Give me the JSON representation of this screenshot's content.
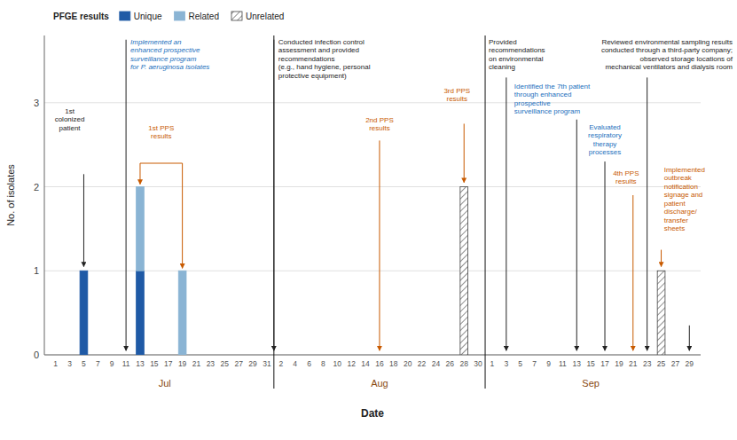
{
  "chart_data": {
    "type": "bar",
    "stacked": true,
    "xlabel": "Date",
    "ylabel": "No. of isolates",
    "categories": [
      "1",
      "3",
      "5",
      "7",
      "9",
      "11",
      "13",
      "15",
      "17",
      "19",
      "21",
      "23",
      "25",
      "27",
      "29",
      "31",
      "2",
      "4",
      "6",
      "8",
      "10",
      "12",
      "14",
      "16",
      "18",
      "20",
      "22",
      "24",
      "26",
      "28",
      "30",
      "1",
      "3",
      "5",
      "7",
      "9",
      "11",
      "13",
      "15",
      "17",
      "19",
      "21",
      "23",
      "25",
      "27",
      "29"
    ],
    "series": [
      {
        "name": "Unique",
        "color": "#1f5aa6",
        "values": [
          0,
          0,
          1,
          0,
          0,
          0,
          1,
          0,
          0,
          0,
          0,
          0,
          0,
          0,
          0,
          0,
          0,
          0,
          0,
          0,
          0,
          0,
          0,
          0,
          0,
          0,
          0,
          0,
          0,
          0,
          0,
          0,
          0,
          0,
          0,
          0,
          0,
          0,
          0,
          0,
          0,
          0,
          0,
          0,
          0,
          0
        ]
      },
      {
        "name": "Related",
        "color": "#8ab4d4",
        "values": [
          0,
          0,
          0,
          0,
          0,
          0,
          1,
          0,
          0,
          1,
          0,
          0,
          0,
          0,
          0,
          0,
          0,
          0,
          0,
          0,
          0,
          0,
          0,
          0,
          0,
          0,
          0,
          0,
          0,
          0,
          0,
          0,
          0,
          0,
          0,
          0,
          0,
          0,
          0,
          0,
          0,
          0,
          0,
          0,
          0,
          0
        ]
      },
      {
        "name": "Unrelated",
        "color": "#ffffff",
        "values": [
          0,
          0,
          0,
          0,
          0,
          0,
          0,
          0,
          0,
          0,
          0,
          0,
          0,
          0,
          0,
          0,
          0,
          0,
          0,
          0,
          0,
          0,
          0,
          0,
          0,
          0,
          0,
          0,
          0,
          2,
          0,
          0,
          0,
          0,
          0,
          0,
          0,
          0,
          0,
          0,
          0,
          0,
          0,
          1,
          0,
          0
        ]
      }
    ],
    "ylim": [
      0,
      3.8
    ],
    "yticks": [
      0,
      1,
      2,
      3
    ],
    "grid": true,
    "legend": "upper left",
    "annotations": [
      "Jul",
      "Aug",
      "Sep",
      "PFGE results",
      "1st\ncolonized\npatient",
      "Implemented an\nenhanced prospective\nsurveillance program\nfor P. aeruginosa isolates",
      "1st PPS\nresults",
      "Conducted infection control\nassessment and provided\nrecommendations\n(e.g., hand hygiene, personal\nprotective equipment)",
      "2nd PPS\nresults",
      "3rd PPS\nresults",
      "Provided\nrecommendations\non environmental\ncleaning",
      "Identified the 7th patient\nthrough enhanced\nprospective\nsurveillance program",
      "Reviewed environmental sampling results\nconducted through a third-party company;\nobserved storage locations of\nmechanical ventilators and dialysis room",
      "Evaluated\nrespiratory\ntherapy\nprocesses",
      "4th PPS\nresults",
      "Implemented\noutbreak\nnotification\nsignage and\npatient\ndischarge/\ntransfer\nsheets"
    ]
  }
}
